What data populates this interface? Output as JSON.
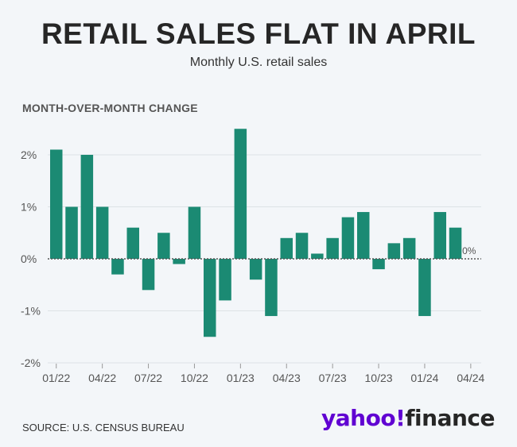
{
  "header": {
    "title": "RETAIL SALES FLAT IN APRIL",
    "subtitle": "Monthly U.S. retail sales"
  },
  "footer": {
    "source": "SOURCE: U.S. CENSUS BUREAU",
    "logo_primary": "yahoo!",
    "logo_secondary": "finance"
  },
  "colors": {
    "bar": "#1b8a73",
    "grid": "#dde2e6",
    "zero_line": "#555555"
  },
  "chart_data": {
    "type": "bar",
    "ylabel": "MONTH-OVER-MONTH CHANGE",
    "ylim": [
      -2,
      2.5
    ],
    "yticks": [
      2,
      1,
      0,
      -1,
      -2
    ],
    "ytick_labels": [
      "2%",
      "1%",
      "0%",
      "-1%",
      "-2%"
    ],
    "xtick_labels": [
      "01/22",
      "04/22",
      "07/22",
      "10/22",
      "01/23",
      "04/23",
      "07/23",
      "10/23",
      "01/24",
      "04/24"
    ],
    "xtick_indices": [
      0,
      3,
      6,
      9,
      12,
      15,
      18,
      21,
      24,
      27
    ],
    "categories": [
      "01/22",
      "02/22",
      "03/22",
      "04/22",
      "05/22",
      "06/22",
      "07/22",
      "08/22",
      "09/22",
      "10/22",
      "11/22",
      "12/22",
      "01/23",
      "02/23",
      "03/23",
      "04/23",
      "05/23",
      "06/23",
      "07/23",
      "08/23",
      "09/23",
      "10/23",
      "11/23",
      "12/23",
      "01/24",
      "02/24",
      "03/24",
      "04/24"
    ],
    "values": [
      2.1,
      1.0,
      2.0,
      1.0,
      -0.3,
      0.6,
      -0.6,
      0.5,
      -0.1,
      1.0,
      -1.5,
      -0.8,
      2.5,
      -0.4,
      -1.1,
      0.4,
      0.5,
      0.1,
      0.4,
      0.8,
      0.9,
      -0.2,
      0.3,
      0.4,
      -1.1,
      0.9,
      0.6,
      0.0
    ],
    "last_label": "0%",
    "grid": true,
    "legend": "none"
  }
}
